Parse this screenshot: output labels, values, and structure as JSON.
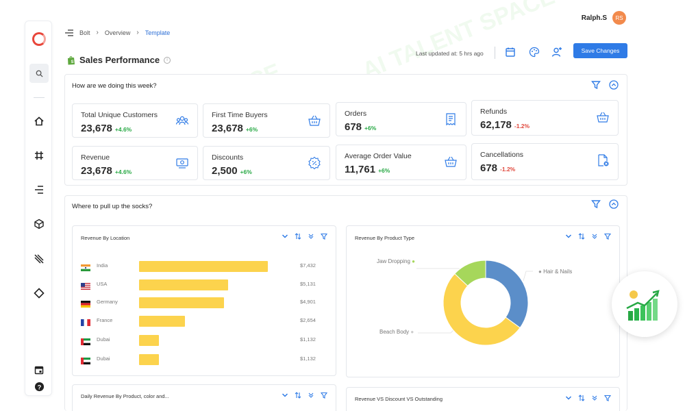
{
  "header": {
    "breadcrumb": [
      "Bolt",
      "Overview",
      "Template"
    ],
    "user_name": "Ralph.S",
    "user_initials": "RS",
    "page_title": "Sales Performance",
    "last_updated": "Last updated at: 5 hrs ago",
    "save_label": "Save Changes"
  },
  "sections": {
    "weekly_title": "How are we doing this week?",
    "socks_title": "Where to pull up the socks?"
  },
  "kpis": [
    {
      "label": "Total Unique Customers",
      "value": "23,678",
      "change": "+4.6%"
    },
    {
      "label": "First Time Buyers",
      "value": "23,678",
      "change": "+6%"
    },
    {
      "label": "Orders",
      "value": "678",
      "change": "+6%"
    },
    {
      "label": "Refunds",
      "value": "62,178",
      "change": "-1.2%"
    },
    {
      "label": "Revenue",
      "value": "23,678",
      "change": "+4.6%"
    },
    {
      "label": "Discounts",
      "value": "2,500",
      "change": "+6%"
    },
    {
      "label": "Average Order Value",
      "value": "11,761",
      "change": "+6%"
    },
    {
      "label": "Cancellations",
      "value": "678",
      "change": "-1.2%"
    }
  ],
  "panels": {
    "location_title": "Revenue By Location",
    "product_type_title": "Revenue By Product Type",
    "daily_title": "Daily Revenue By Product, color and...",
    "rdo_title": "Revenue VS Discount VS Outstanding"
  },
  "chart_data": [
    {
      "type": "bar",
      "title": "Revenue By Location",
      "orientation": "horizontal",
      "categories": [
        "India",
        "USA",
        "Germany",
        "France",
        "Dubai",
        "Dubai"
      ],
      "values": [
        7432,
        5131,
        4901,
        2654,
        1132,
        1132
      ],
      "value_labels": [
        "$7,432",
        "$5,131",
        "$4,901",
        "$2,654",
        "$1,132",
        "$1,132"
      ],
      "xlim": [
        0,
        7432
      ],
      "color": "#fcd34d"
    },
    {
      "type": "pie",
      "title": "Revenue By Product Type",
      "donut": true,
      "categories": [
        "Hair & Nails",
        "Beach Body",
        "Jaw Dropping"
      ],
      "values": [
        35,
        52,
        13
      ],
      "colors": [
        "#5b8ec9",
        "#fcd34d",
        "#a6d75b"
      ]
    }
  ],
  "icons": {
    "brand": "shopify-bag-icon",
    "colors": {
      "accent": "#2f7be6",
      "positive": "#27a844",
      "negative": "#e0463a"
    }
  },
  "watermark": "AI TALENT SPACE"
}
